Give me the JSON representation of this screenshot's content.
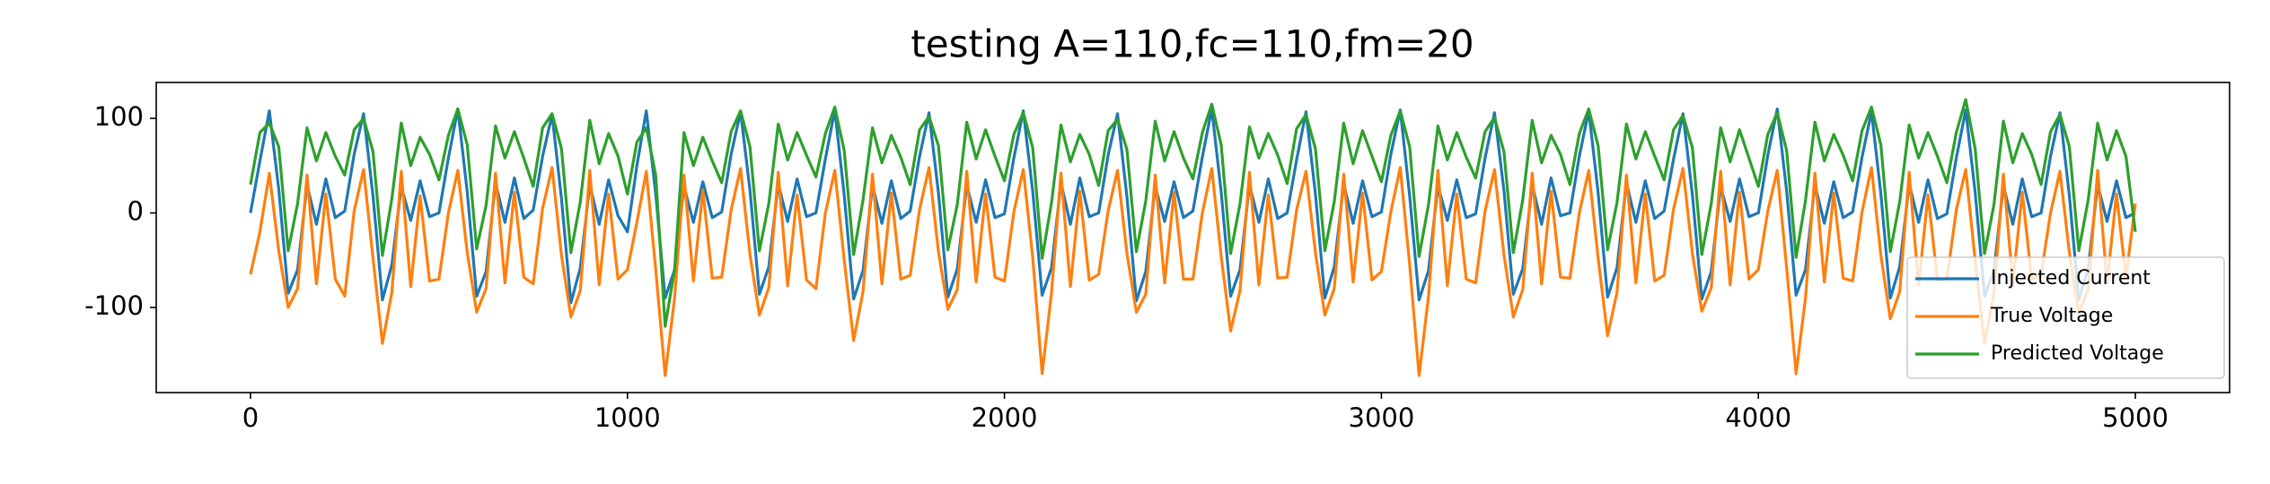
{
  "chart_data": {
    "type": "line",
    "title": "testing A=110,fc=110,fm=20",
    "x": [
      0,
      25,
      50,
      75,
      100,
      125,
      150,
      175,
      200,
      225,
      250,
      275,
      300,
      325,
      350,
      375,
      400,
      425,
      450,
      475,
      500,
      525,
      550,
      575,
      600,
      625,
      650,
      675,
      700,
      725,
      750,
      775,
      800,
      825,
      850,
      875,
      900,
      925,
      950,
      975,
      1000,
      1025,
      1050,
      1075,
      1100,
      1125,
      1150,
      1175,
      1200,
      1225,
      1250,
      1275,
      1300,
      1325,
      1350,
      1375,
      1400,
      1425,
      1450,
      1475,
      1500,
      1525,
      1550,
      1575,
      1600,
      1625,
      1650,
      1675,
      1700,
      1725,
      1750,
      1775,
      1800,
      1825,
      1850,
      1875,
      1900,
      1925,
      1950,
      1975,
      2000,
      2025,
      2050,
      2075,
      2100,
      2125,
      2150,
      2175,
      2200,
      2225,
      2250,
      2275,
      2300,
      2325,
      2350,
      2375,
      2400,
      2425,
      2450,
      2475,
      2500,
      2525,
      2550,
      2575,
      2600,
      2625,
      2650,
      2675,
      2700,
      2725,
      2750,
      2775,
      2800,
      2825,
      2850,
      2875,
      2900,
      2925,
      2950,
      2975,
      3000,
      3025,
      3050,
      3075,
      3100,
      3125,
      3150,
      3175,
      3200,
      3225,
      3250,
      3275,
      3300,
      3325,
      3350,
      3375,
      3400,
      3425,
      3450,
      3475,
      3500,
      3525,
      3550,
      3575,
      3600,
      3625,
      3650,
      3675,
      3700,
      3725,
      3750,
      3775,
      3800,
      3825,
      3850,
      3875,
      3900,
      3925,
      3950,
      3975,
      4000,
      4025,
      4050,
      4075,
      4100,
      4125,
      4150,
      4175,
      4200,
      4225,
      4250,
      4275,
      4300,
      4325,
      4350,
      4375,
      4400,
      4425,
      4450,
      4475,
      4500,
      4525,
      4550,
      4575,
      4600,
      4625,
      4650,
      4675,
      4700,
      4725,
      4750,
      4775,
      4800,
      4825,
      4850,
      4875,
      4900,
      4925,
      4950,
      4975,
      5000
    ],
    "series": [
      {
        "name": "Injected Current",
        "color": "#1f77b4",
        "values": [
          0,
          55,
          108,
          25,
          -85,
          -60,
          30,
          -12,
          36,
          -5,
          2,
          62,
          105,
          18,
          -92,
          -55,
          28,
          -8,
          34,
          -4,
          0,
          58,
          110,
          22,
          -88,
          -62,
          32,
          -10,
          37,
          -6,
          3,
          60,
          104,
          15,
          -95,
          -58,
          30,
          -12,
          35,
          -3,
          -20,
          50,
          108,
          20,
          -90,
          -60,
          28,
          -10,
          33,
          -5,
          1,
          62,
          107,
          24,
          -86,
          -57,
          31,
          -9,
          36,
          -4,
          0,
          57,
          109,
          19,
          -91,
          -61,
          29,
          -11,
          34,
          -6,
          2,
          60,
          106,
          21,
          -89,
          -59,
          30,
          -10,
          35,
          -5,
          -1,
          58,
          108,
          23,
          -87,
          -58,
          32,
          -12,
          37,
          -4,
          0,
          61,
          105,
          17,
          -93,
          -62,
          28,
          -9,
          33,
          -5,
          2,
          59,
          110,
          22,
          -88,
          -60,
          30,
          -10,
          36,
          -6,
          0,
          56,
          107,
          20,
          -90,
          -57,
          31,
          -11,
          34,
          -4,
          1,
          62,
          109,
          18,
          -92,
          -61,
          29,
          -8,
          35,
          -5,
          -1,
          58,
          106,
          24,
          -86,
          -59,
          30,
          -12,
          37,
          -3,
          0,
          60,
          108,
          21,
          -89,
          -58,
          32,
          -10,
          34,
          -6,
          2,
          57,
          105,
          19,
          -91,
          -62,
          28,
          -9,
          36,
          -4,
          0,
          61,
          110,
          23,
          -87,
          -60,
          30,
          -11,
          33,
          -5,
          1,
          59,
          107,
          20,
          -90,
          -57,
          31,
          -10,
          35,
          -6,
          -1,
          58,
          109,
          22,
          -88,
          -61,
          29,
          -12,
          36,
          -4,
          0,
          60,
          106,
          18,
          -92,
          -59,
          30,
          -9,
          34,
          -5,
          0
        ]
      },
      {
        "name": "True Voltage",
        "color": "#ff7f0e",
        "values": [
          -65,
          -20,
          42,
          -40,
          -100,
          -80,
          40,
          -75,
          20,
          -70,
          -88,
          2,
          46,
          -48,
          -138,
          -84,
          44,
          -78,
          18,
          -72,
          -70,
          0,
          45,
          -42,
          -105,
          -80,
          42,
          -74,
          22,
          -68,
          -75,
          5,
          48,
          -45,
          -110,
          -82,
          45,
          -76,
          20,
          -70,
          -60,
          -10,
          44,
          -60,
          -172,
          -90,
          40,
          -72,
          24,
          -69,
          -68,
          3,
          47,
          -44,
          -108,
          -79,
          43,
          -77,
          19,
          -71,
          -80,
          0,
          45,
          -50,
          -135,
          -83,
          41,
          -75,
          21,
          -70,
          -66,
          4,
          48,
          -41,
          -102,
          -81,
          44,
          -73,
          20,
          -68,
          -72,
          1,
          46,
          -47,
          -170,
          -84,
          42,
          -78,
          23,
          -71,
          -65,
          2,
          45,
          -43,
          -105,
          -86,
          40,
          -74,
          22,
          -70,
          -70,
          0,
          47,
          -46,
          -125,
          -82,
          43,
          -76,
          19,
          -69,
          -68,
          3,
          44,
          -42,
          -108,
          -80,
          41,
          -73,
          21,
          -71,
          -62,
          1,
          48,
          -55,
          -172,
          -88,
          45,
          -77,
          20,
          -70,
          -74,
          2,
          46,
          -44,
          -110,
          -81,
          42,
          -75,
          23,
          -68,
          -69,
          0,
          45,
          -48,
          -130,
          -84,
          40,
          -74,
          20,
          -72,
          -66,
          4,
          47,
          -43,
          -104,
          -79,
          44,
          -76,
          22,
          -70,
          -60,
          2,
          45,
          -58,
          -170,
          -90,
          42,
          -73,
          21,
          -69,
          -72,
          1,
          48,
          -45,
          -112,
          -83,
          43,
          -77,
          19,
          -71,
          -70,
          3,
          46,
          -50,
          -138,
          -85,
          41,
          -75,
          22,
          -70,
          -65,
          0,
          44,
          -42,
          -106,
          -80,
          45,
          -74,
          20,
          -68,
          10
        ]
      },
      {
        "name": "Predicted Voltage",
        "color": "#2ca02c",
        "values": [
          30,
          85,
          95,
          70,
          -40,
          10,
          90,
          55,
          85,
          60,
          40,
          88,
          100,
          65,
          -45,
          15,
          95,
          50,
          80,
          62,
          35,
          82,
          110,
          72,
          -38,
          8,
          92,
          58,
          86,
          58,
          28,
          90,
          105,
          68,
          -42,
          12,
          98,
          52,
          84,
          60,
          20,
          75,
          90,
          40,
          -120,
          -60,
          85,
          50,
          80,
          55,
          32,
          86,
          108,
          70,
          -40,
          10,
          94,
          56,
          85,
          61,
          38,
          84,
          112,
          66,
          -44,
          14,
          90,
          53,
          82,
          59,
          30,
          88,
          102,
          71,
          -39,
          9,
          96,
          57,
          88,
          60,
          34,
          83,
          106,
          69,
          -48,
          11,
          93,
          54,
          83,
          62,
          29,
          87,
          99,
          67,
          -41,
          13,
          97,
          55,
          86,
          58,
          36,
          85,
          115,
          72,
          -43,
          10,
          91,
          58,
          84,
          61,
          31,
          89,
          104,
          68,
          -40,
          12,
          95,
          52,
          87,
          60,
          33,
          82,
          108,
          70,
          -46,
          9,
          92,
          56,
          85,
          59,
          37,
          86,
          101,
          65,
          -42,
          14,
          98,
          53,
          82,
          62,
          30,
          84,
          110,
          71,
          -39,
          11,
          94,
          57,
          86,
          60,
          35,
          88,
          103,
          69,
          -44,
          10,
          90,
          54,
          88,
          58,
          28,
          83,
          106,
          66,
          -47,
          13,
          96,
          55,
          83,
          61,
          34,
          87,
          112,
          72,
          -41,
          12,
          93,
          58,
          85,
          60,
          32,
          85,
          120,
          68,
          -43,
          9,
          97,
          53,
          84,
          62,
          30,
          86,
          104,
          70,
          -40,
          14,
          95,
          56,
          87,
          60,
          -20
        ]
      }
    ],
    "xlim": [
      -250,
      5250
    ],
    "ylim": [
      -190,
      138
    ],
    "xticks": [
      0,
      1000,
      2000,
      3000,
      4000,
      5000
    ],
    "yticks": [
      -100,
      0,
      100
    ],
    "legend": "lower right"
  }
}
